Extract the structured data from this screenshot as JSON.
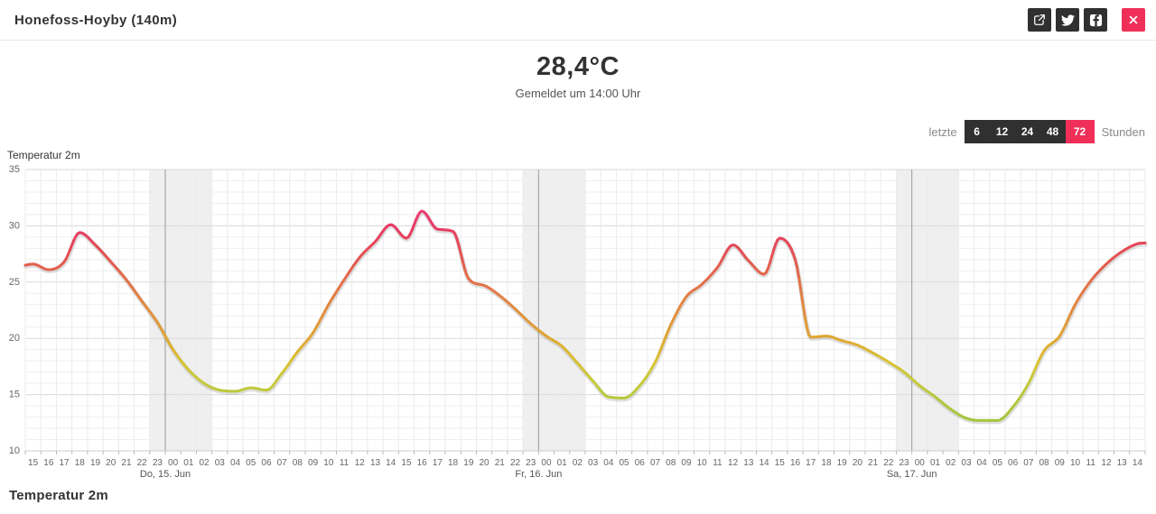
{
  "header": {
    "title": "Honefoss-Hoyby (140m)",
    "buttons": [
      {
        "name": "export",
        "icon": "share-export-icon"
      },
      {
        "name": "twitter",
        "icon": "twitter-icon"
      },
      {
        "name": "facebook",
        "icon": "facebook-icon"
      },
      {
        "name": "close",
        "icon": "close-icon"
      }
    ]
  },
  "current": {
    "temperature": "28,4°C",
    "reported": "Gemeldet um 14:00 Uhr"
  },
  "range_selector": {
    "prefix": "letzte",
    "suffix": "Stunden",
    "options": [
      "6",
      "12",
      "24",
      "48",
      "72"
    ],
    "active": "72"
  },
  "footer": {
    "title": "Temperatur 2m"
  },
  "colors": {
    "accent_pink": "#ef2f58",
    "button_dark": "#303030",
    "text_dark": "#333333",
    "text_gray": "#8a8a8a"
  },
  "chart_data": {
    "type": "line",
    "title": "Temperatur 2m",
    "xlabel": "",
    "ylabel": "",
    "ylim": [
      10,
      35
    ],
    "y_ticks": [
      10,
      15,
      20,
      25,
      30,
      35
    ],
    "y_minor_step": 1,
    "grid": true,
    "legend": "none",
    "x_hour_labels": [
      "15",
      "16",
      "17",
      "18",
      "19",
      "20",
      "21",
      "22",
      "23",
      "00",
      "01",
      "02",
      "03",
      "04",
      "05",
      "06",
      "07",
      "08",
      "09",
      "10",
      "11",
      "12",
      "13",
      "14",
      "15",
      "16",
      "17",
      "18",
      "19",
      "20",
      "21",
      "22",
      "23",
      "00",
      "01",
      "02",
      "03",
      "04",
      "05",
      "06",
      "07",
      "08",
      "09",
      "10",
      "11",
      "12",
      "13",
      "14",
      "15",
      "16",
      "17",
      "18",
      "19",
      "20",
      "21",
      "22",
      "23",
      "00",
      "01",
      "02",
      "03",
      "04",
      "05",
      "06",
      "07",
      "08",
      "09",
      "10",
      "11",
      "12",
      "13",
      "14"
    ],
    "day_labels": [
      {
        "label": "Do, 15. Jun",
        "boundary": 9
      },
      {
        "label": "Fr, 16. Jun",
        "boundary": 33
      },
      {
        "label": "Sa, 17. Jun",
        "boundary": 57
      }
    ],
    "night_bands": [
      [
        8,
        12
      ],
      [
        32,
        36
      ],
      [
        56,
        60
      ]
    ],
    "values": [
      26.6,
      26.1,
      26.8,
      29.4,
      28.3,
      26.8,
      25.2,
      23.3,
      21.4,
      19.0,
      17.2,
      16.0,
      15.4,
      15.3,
      15.6,
      15.4,
      16.9,
      18.8,
      20.5,
      23.0,
      25.2,
      27.2,
      28.6,
      30.1,
      28.9,
      31.3,
      29.7,
      29.5,
      25.3,
      24.7,
      23.8,
      22.6,
      21.3,
      20.2,
      19.3,
      17.8,
      16.2,
      14.8,
      14.7,
      15.8,
      17.9,
      21.2,
      23.7,
      24.8,
      26.3,
      28.3,
      26.9,
      25.7,
      28.9,
      27.0,
      20.1,
      20.2,
      19.8,
      19.4,
      18.7,
      17.9,
      17.0,
      15.8,
      14.8,
      13.7,
      12.9,
      12.7,
      12.7,
      13.9,
      16.0,
      18.9,
      20.2,
      23.0,
      25.1,
      26.6,
      27.7,
      28.4
    ],
    "color_stops": [
      [
        12.0,
        "#a0c43e"
      ],
      [
        14.0,
        "#aec73f"
      ],
      [
        16.0,
        "#c5ca3c"
      ],
      [
        18.0,
        "#d9c233"
      ],
      [
        20.0,
        "#dfa733"
      ],
      [
        22.0,
        "#e1923e"
      ],
      [
        24.0,
        "#e27c46"
      ],
      [
        26.0,
        "#e2654c"
      ],
      [
        28.0,
        "#e44b57"
      ],
      [
        30.0,
        "#e93a67"
      ],
      [
        32.0,
        "#ee4078"
      ]
    ],
    "style": {
      "night_band": "rgba(125,125,125,0.12)",
      "grid_minor": "#efefef",
      "grid_major": "#dadada",
      "grid_vertical": "#ebebeb",
      "midnight_line": "#9a9a9a",
      "axis_line": "#cccccc",
      "tick": "#bbbbbb",
      "axis_label": "#666666",
      "day_label": "#555555",
      "chart_title": "#333333",
      "line_halo": "rgba(130,130,130,0.25)"
    }
  }
}
